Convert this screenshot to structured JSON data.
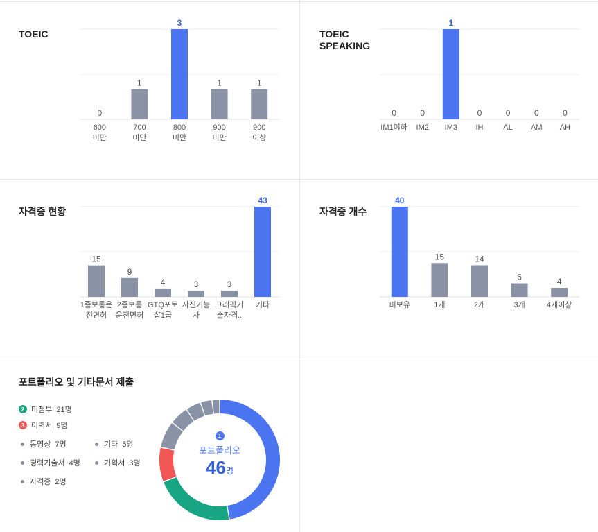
{
  "colors": {
    "highlight": "#4a74f0",
    "default": "#8a93a6",
    "green": "#17a583",
    "red": "#f25757",
    "grid": "#eeeeee",
    "axis": "#e0e0e0"
  },
  "chart_data": [
    {
      "type": "bar",
      "title": "TOEIC",
      "categories": [
        [
          "600",
          "미만"
        ],
        [
          "700",
          "미만"
        ],
        [
          "800",
          "미만"
        ],
        [
          "900",
          "미만"
        ],
        [
          "900",
          "이상"
        ]
      ],
      "values": [
        0,
        1,
        3,
        1,
        1
      ],
      "highlight_index": 2,
      "grid": true
    },
    {
      "type": "bar",
      "title": "TOEIC\nSPEAKING",
      "categories": [
        [
          "IM1이하"
        ],
        [
          "IM2"
        ],
        [
          "IM3"
        ],
        [
          "IH"
        ],
        [
          "AL"
        ],
        [
          "AM"
        ],
        [
          "AH"
        ]
      ],
      "values": [
        0,
        0,
        1,
        0,
        0,
        0,
        0
      ],
      "highlight_index": 2,
      "grid": true
    },
    {
      "type": "bar",
      "title": "자격증 현황",
      "categories": [
        [
          "1종보통운",
          "전면허"
        ],
        [
          "2종보통",
          "운전면허"
        ],
        [
          "GTQ포토",
          "샵1급"
        ],
        [
          "사진기능",
          "사"
        ],
        [
          "그래픽기",
          "술자격.."
        ],
        [
          "기타"
        ]
      ],
      "values": [
        15,
        9,
        4,
        3,
        3,
        43
      ],
      "highlight_index": 5,
      "grid": true
    },
    {
      "type": "bar",
      "title": "자격증 개수",
      "categories": [
        [
          "미보유"
        ],
        [
          "1개"
        ],
        [
          "2개"
        ],
        [
          "3개"
        ],
        [
          "4개이상"
        ]
      ],
      "values": [
        40,
        15,
        14,
        6,
        4
      ],
      "highlight_index": 0,
      "grid": true
    },
    {
      "type": "pie",
      "title": "포트폴리오 및 기타문서 제출",
      "center": {
        "badge": "1",
        "label": "포트폴리오",
        "value": "46",
        "unit": "명"
      },
      "slices": [
        {
          "label": "포트폴리오",
          "value": 46,
          "color": "#4a74f0"
        },
        {
          "label": "미첨부",
          "value": 21,
          "color": "#17a583"
        },
        {
          "label": "이력서",
          "value": 9,
          "color": "#f25757"
        },
        {
          "label": "동영상",
          "value": 7,
          "color": "#8a93a6"
        },
        {
          "label": "기타",
          "value": 5,
          "color": "#8a93a6"
        },
        {
          "label": "경력기술서",
          "value": 4,
          "color": "#8a93a6"
        },
        {
          "label": "기획서",
          "value": 3,
          "color": "#8a93a6"
        },
        {
          "label": "자격증",
          "value": 2,
          "color": "#8a93a6"
        }
      ]
    }
  ],
  "portfolio_legend": [
    {
      "kind": "badge",
      "badge": "2",
      "label": "미첨부",
      "count": "21명",
      "color": "#17a583"
    },
    {
      "kind": "badge",
      "badge": "3",
      "label": "이력서",
      "count": "9명",
      "color": "#f25757"
    },
    {
      "kind": "dot",
      "label": "동영상",
      "count": "7명",
      "color": "#8a93a6"
    },
    {
      "kind": "dot",
      "label": "기타",
      "count": "5명",
      "color": "#8a93a6"
    },
    {
      "kind": "dot",
      "label": "경력기술서",
      "count": "4명",
      "color": "#8a93a6"
    },
    {
      "kind": "dot",
      "label": "기획서",
      "count": "3명",
      "color": "#8a93a6"
    },
    {
      "kind": "dot",
      "label": "자격증",
      "count": "2명",
      "color": "#8a93a6"
    }
  ]
}
